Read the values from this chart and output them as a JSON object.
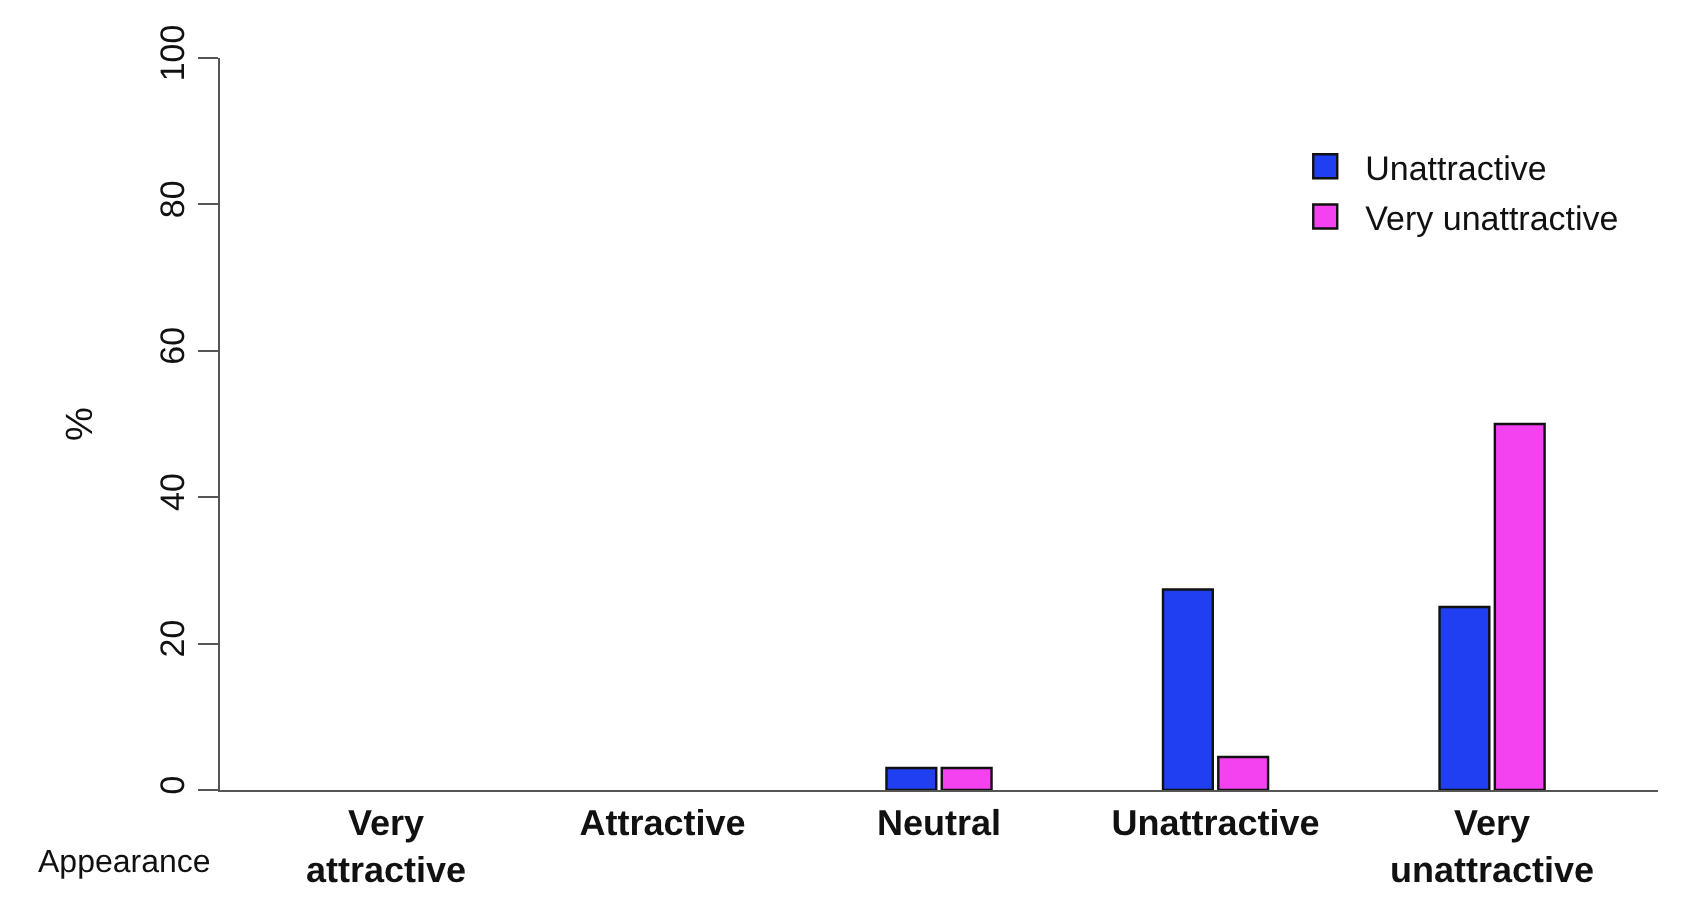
{
  "chart_data": {
    "type": "bar",
    "xlabel": "Appearance",
    "ylabel": "%",
    "categories": [
      "Very\nattractive",
      "Attractive",
      "Neutral",
      "Unattractive",
      "Very\nunattractive"
    ],
    "series": [
      {
        "name": "Unattractive",
        "color": "#1f3ff0",
        "values": [
          null,
          null,
          3,
          27.4,
          25
        ]
      },
      {
        "name": "Very unattractive",
        "color": "#f542f0",
        "values": [
          null,
          null,
          3,
          4.5,
          50
        ]
      }
    ],
    "ylim": [
      0,
      100
    ],
    "yticks": [
      0,
      20,
      40,
      60,
      80,
      100
    ],
    "legend": "top right"
  }
}
